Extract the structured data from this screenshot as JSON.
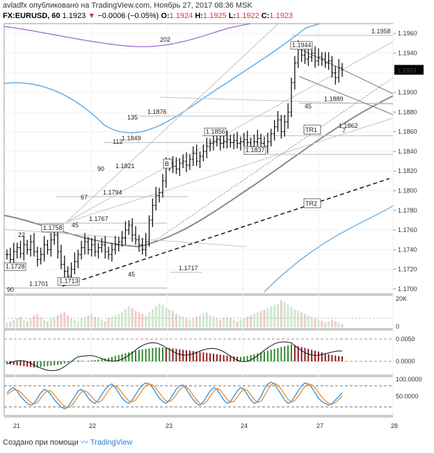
{
  "header": {
    "author": "avladfx",
    "published": "опубликовано на TradingView.com, Ноябрь 27, 2017 08:36 MSK",
    "symbol": "FX:EURUSD, 60",
    "last": "1.1923",
    "change": "−0.0006 (−0.05%)",
    "open_label": "O:",
    "open": "1.1924",
    "high_label": "H:",
    "high": "1.1925",
    "low_label": "L:",
    "low": "1.1922",
    "close_label": "C:",
    "close": "1.1923"
  },
  "footer": {
    "created": "Создано при помощи",
    "brand": "TradingView"
  },
  "chart_data": [
    {
      "type": "candlestick",
      "x_ticks": [
        "21",
        "22",
        "23",
        "24",
        "27",
        "28"
      ],
      "y_ticks": [
        "1.1700",
        "1.1720",
        "1.1740",
        "1.1760",
        "1.1780",
        "1.1800",
        "1.1820",
        "1.1840",
        "1.1860",
        "1.1880",
        "1.1900",
        "1.1920",
        "1.1940",
        "1.1960"
      ],
      "ylim": [
        1.1695,
        1.197
      ],
      "price_badge": "1.1923",
      "colors": {
        "bar": "#000000",
        "trend": "#222222",
        "ma_blue": "#6aaee8",
        "ma_purple": "#9966cc",
        "ma_grey": "#888888",
        "fan": "#999999"
      },
      "closes": [
        1.1735,
        1.173,
        1.1738,
        1.1742,
        1.1736,
        1.1745,
        1.174,
        1.1748,
        1.1738,
        1.173,
        1.1735,
        1.1745,
        1.174,
        1.175,
        1.1755,
        1.1738,
        1.1725,
        1.1718,
        1.1713,
        1.172,
        1.1728,
        1.1735,
        1.1742,
        1.1748,
        1.174,
        1.1745,
        1.1738,
        1.1742,
        1.1745,
        1.1738,
        1.1735,
        1.174,
        1.1745,
        1.1748,
        1.1752,
        1.176,
        1.1765,
        1.1755,
        1.175,
        1.1745,
        1.174,
        1.1748,
        1.177,
        1.1785,
        1.1795,
        1.1798,
        1.181,
        1.1825,
        1.1828,
        1.1825,
        1.1822,
        1.1828,
        1.183,
        1.1826,
        1.1832,
        1.1838,
        1.183,
        1.1835,
        1.184,
        1.1845,
        1.1848,
        1.185,
        1.1852,
        1.1848,
        1.185,
        1.1852,
        1.1849,
        1.1851,
        1.1848,
        1.185,
        1.1852,
        1.1849,
        1.1845,
        1.185,
        1.1853,
        1.1848,
        1.1845,
        1.185,
        1.1858,
        1.1865,
        1.1872,
        1.186,
        1.187,
        1.188,
        1.191,
        1.193,
        1.1944,
        1.1938,
        1.1934,
        1.1936,
        1.194,
        1.1932,
        1.1936,
        1.1934,
        1.193,
        1.1932,
        1.192,
        1.1915,
        1.1925,
        1.1923
      ],
      "annotations": [
        {
          "text": "1.1958",
          "price": 1.1958
        },
        {
          "text": "1.1944",
          "price": 1.1944
        },
        {
          "text": "1.1889",
          "price": 1.1889
        },
        {
          "text": "1.1876",
          "price": 1.1876
        },
        {
          "text": "1.1862",
          "price": 1.1862
        },
        {
          "text": "1.1856",
          "price": 1.1856
        },
        {
          "text": "1.1849",
          "price": 1.1849
        },
        {
          "text": "1.1837",
          "price": 1.1837
        },
        {
          "text": "1.1821",
          "price": 1.1821
        },
        {
          "text": "1.1794",
          "price": 1.1794
        },
        {
          "text": "1.1767",
          "price": 1.1767
        },
        {
          "text": "1.1758",
          "price": 1.1758
        },
        {
          "text": "1.1728",
          "price": 1.1728
        },
        {
          "text": "1.1717",
          "price": 1.1717
        },
        {
          "text": "1.1713",
          "price": 1.1713
        },
        {
          "text": "1.1701",
          "price": 1.1701
        }
      ],
      "fan_labels": [
        "202",
        "135",
        "112",
        "90",
        "67",
        "45",
        "22",
        "90",
        "45",
        "45",
        "7"
      ],
      "tags": [
        "B",
        "TR1",
        "TR2"
      ]
    },
    {
      "type": "bar",
      "name_axis": [
        "20K",
        "0"
      ],
      "volumes": [
        3,
        4,
        5,
        6,
        7,
        5,
        4,
        6,
        8,
        9,
        7,
        5,
        4,
        6,
        7,
        8,
        9,
        10,
        8,
        6,
        5,
        4,
        6,
        7,
        8,
        9,
        7,
        6,
        5,
        4,
        6,
        7,
        8,
        9,
        10,
        12,
        14,
        13,
        11,
        10,
        9,
        8,
        10,
        12,
        14,
        16,
        15,
        13,
        12,
        11,
        9,
        8,
        7,
        6,
        5,
        6,
        7,
        8,
        9,
        10,
        8,
        7,
        6,
        5,
        6,
        7,
        6,
        5,
        4,
        5,
        6,
        7,
        8,
        9,
        10,
        11,
        12,
        13,
        14,
        15,
        16,
        18,
        17,
        15,
        14,
        12,
        11,
        10,
        9,
        8,
        7,
        6,
        5,
        4,
        3,
        4,
        5,
        4,
        3,
        2
      ]
    },
    {
      "type": "bar",
      "yticks": [
        "0.0050",
        "0.0000"
      ],
      "macd": [
        -0.0006,
        -0.0007,
        -0.0008,
        -0.0009,
        -0.001,
        -0.0011,
        -0.0012,
        -0.0013,
        -0.0014,
        -0.0014,
        -0.0013,
        -0.0012,
        -0.0011,
        -0.001,
        -0.0009,
        -0.0008,
        -0.0007,
        -0.0005,
        -0.0003,
        -0.0001,
        0.0001,
        0.0002,
        0.0001,
        0.0,
        0.0001,
        0.0002,
        0.0003,
        0.0004,
        0.0005,
        0.0006,
        0.0008,
        0.001,
        0.0012,
        0.0014,
        0.0016,
        0.0018,
        0.002,
        0.0022,
        0.0024,
        0.0026,
        0.0027,
        0.0028,
        0.0029,
        0.003,
        0.0031,
        0.0031,
        0.0031,
        0.003,
        0.003,
        0.0029,
        0.0028,
        0.0027,
        0.0026,
        0.0025,
        0.0024,
        0.0023,
        0.0022,
        0.0021,
        0.002,
        0.0019,
        0.0018,
        0.0017,
        0.0016,
        0.0015,
        0.0014,
        0.0013,
        0.0012,
        0.0011,
        0.001,
        0.001,
        0.0011,
        0.0012,
        0.0014,
        0.0016,
        0.0018,
        0.002,
        0.0022,
        0.0024,
        0.0026,
        0.0028,
        0.003,
        0.0032,
        0.0034,
        0.0036,
        0.0038,
        0.0036,
        0.0034,
        0.0032,
        0.003,
        0.0028,
        0.0026,
        0.0024,
        0.0022,
        0.002,
        0.0018,
        0.0016,
        0.0014,
        0.0013,
        0.0012,
        0.0011
      ]
    },
    {
      "type": "line",
      "yticks": [
        "100.0000",
        "50.0000"
      ],
      "k": [
        60,
        70,
        75,
        65,
        50,
        40,
        30,
        25,
        30,
        45,
        60,
        70,
        65,
        55,
        40,
        30,
        20,
        15,
        20,
        35,
        50,
        65,
        70,
        60,
        45,
        35,
        30,
        40,
        55,
        70,
        80,
        85,
        75,
        60,
        45,
        35,
        30,
        40,
        55,
        70,
        82,
        88,
        85,
        75,
        60,
        45,
        35,
        30,
        40,
        55,
        70,
        80,
        82,
        70,
        55,
        40,
        30,
        25,
        35,
        50,
        65,
        75,
        70,
        55,
        40,
        30,
        35,
        50,
        65,
        75,
        70,
        55,
        40,
        30,
        35,
        50,
        70,
        85,
        90,
        85,
        70,
        55,
        40,
        30,
        35,
        50,
        65,
        80,
        88,
        85,
        75,
        60,
        45,
        35,
        30,
        25,
        30,
        40,
        50,
        60
      ],
      "d": [
        55,
        62,
        68,
        68,
        62,
        52,
        42,
        33,
        29,
        33,
        45,
        58,
        66,
        65,
        55,
        42,
        31,
        22,
        18,
        23,
        35,
        50,
        62,
        66,
        60,
        49,
        38,
        33,
        38,
        52,
        67,
        78,
        80,
        73,
        60,
        47,
        37,
        34,
        40,
        53,
        68,
        80,
        85,
        82,
        73,
        60,
        47,
        37,
        35,
        42,
        55,
        68,
        77,
        76,
        67,
        53,
        40,
        30,
        28,
        36,
        50,
        64,
        72,
        68,
        55,
        42,
        33,
        36,
        48,
        61,
        71,
        67,
        55,
        42,
        33,
        36,
        50,
        68,
        83,
        87,
        82,
        70,
        55,
        42,
        34,
        38,
        50,
        65,
        78,
        85,
        83,
        74,
        61,
        48,
        37,
        30,
        28,
        33,
        41,
        50
      ]
    }
  ]
}
